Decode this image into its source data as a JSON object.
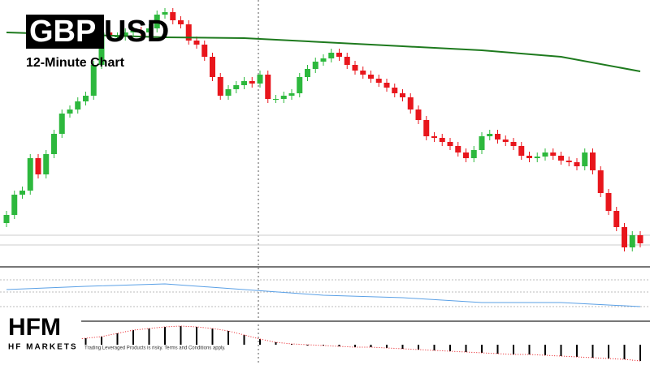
{
  "chart_data": {
    "type": "candlestick",
    "title_boxed": "GBP",
    "title_rest": "USD",
    "subtitle": "12-Minute Chart",
    "logo": "HFM",
    "brand": "HF MARKETS",
    "disclaimer": "Trading Leveraged Products is risky. Terms and Conditions apply.",
    "up_color": "#2db83d",
    "down_color": "#e8161c",
    "ylim": [
      0,
      330
    ],
    "open": [
      55,
      65,
      90,
      95,
      135,
      115,
      140,
      165,
      190,
      195,
      205,
      212,
      250,
      290,
      285,
      285,
      290,
      292,
      290,
      295,
      312,
      315,
      305,
      300,
      280,
      275,
      260,
      235,
      212,
      220,
      225,
      230,
      227,
      238,
      208,
      208,
      212,
      215,
      235,
      245,
      254,
      258,
      265,
      260,
      250,
      243,
      238,
      233,
      228,
      222,
      215,
      210,
      195,
      182,
      162,
      160,
      155,
      150,
      142,
      135,
      145,
      162,
      165,
      158,
      155,
      150,
      138,
      135,
      137,
      142,
      138,
      132,
      130,
      125,
      142,
      120,
      92,
      70,
      50,
      25,
      40
    ],
    "high": [
      70,
      95,
      100,
      140,
      140,
      145,
      170,
      195,
      200,
      210,
      217,
      255,
      295,
      295,
      290,
      295,
      297,
      297,
      300,
      317,
      320,
      320,
      310,
      305,
      285,
      280,
      265,
      240,
      225,
      230,
      235,
      235,
      243,
      243,
      213,
      217,
      220,
      240,
      250,
      259,
      263,
      270,
      270,
      265,
      255,
      248,
      243,
      238,
      233,
      227,
      220,
      215,
      200,
      187,
      167,
      165,
      160,
      155,
      147,
      150,
      167,
      170,
      170,
      163,
      160,
      155,
      143,
      142,
      147,
      147,
      143,
      137,
      135,
      147,
      147,
      125,
      97,
      75,
      55,
      45,
      45
    ],
    "low": [
      50,
      60,
      85,
      90,
      110,
      110,
      135,
      160,
      185,
      190,
      200,
      207,
      245,
      280,
      280,
      280,
      285,
      285,
      285,
      290,
      307,
      300,
      295,
      275,
      270,
      255,
      230,
      207,
      207,
      215,
      220,
      222,
      222,
      203,
      203,
      203,
      207,
      210,
      230,
      240,
      249,
      253,
      255,
      245,
      238,
      233,
      228,
      223,
      217,
      210,
      205,
      190,
      177,
      157,
      155,
      150,
      145,
      137,
      130,
      130,
      140,
      157,
      153,
      150,
      145,
      133,
      130,
      130,
      132,
      133,
      127,
      125,
      120,
      120,
      115,
      87,
      65,
      45,
      20,
      20,
      25
    ],
    "close": [
      65,
      90,
      95,
      135,
      115,
      140,
      165,
      190,
      195,
      205,
      212,
      250,
      290,
      285,
      285,
      290,
      292,
      290,
      295,
      312,
      315,
      305,
      300,
      280,
      275,
      260,
      235,
      212,
      220,
      225,
      230,
      227,
      238,
      208,
      208,
      212,
      215,
      235,
      245,
      254,
      258,
      265,
      260,
      250,
      243,
      238,
      233,
      228,
      222,
      215,
      210,
      195,
      182,
      162,
      160,
      155,
      150,
      142,
      135,
      145,
      162,
      165,
      158,
      155,
      150,
      138,
      135,
      137,
      142,
      138,
      132,
      130,
      125,
      142,
      120,
      92,
      70,
      50,
      25,
      40,
      30
    ],
    "moving_average": {
      "color": "#1e7a1e",
      "x": [
        0,
        10,
        20,
        30,
        40,
        50,
        60,
        70,
        80
      ],
      "values": [
        290,
        287,
        284,
        283,
        278,
        273,
        268,
        260,
        242
      ]
    },
    "oscillator": {
      "color": "#5aa0e6",
      "ylim": [
        0,
        65
      ],
      "x": [
        0,
        10,
        20,
        30,
        40,
        50,
        60,
        70,
        80
      ],
      "values": [
        38,
        42,
        45,
        38,
        31,
        28,
        22,
        22,
        17
      ]
    },
    "histogram": {
      "color": "#000000",
      "ylim": [
        -25,
        29
      ],
      "signal_color": "#e8161c",
      "x": [
        0,
        2,
        4,
        6,
        8,
        10,
        12,
        14,
        16,
        18,
        20,
        22,
        24,
        26,
        28,
        30,
        32,
        34,
        36,
        38,
        40,
        42,
        44,
        46,
        48,
        50,
        52,
        54,
        56,
        58,
        60,
        62,
        64,
        66,
        68,
        70,
        72,
        74,
        76,
        78,
        80
      ],
      "values": [
        2,
        3,
        4,
        5,
        6,
        8,
        10,
        14,
        18,
        20,
        22,
        23,
        22,
        20,
        17,
        12,
        7,
        3,
        1,
        0,
        -1,
        -2,
        -3,
        -3,
        -4,
        -5,
        -6,
        -7,
        -8,
        -9,
        -10,
        -11,
        -12,
        -12,
        -13,
        -14,
        -15,
        -16,
        -17,
        -18,
        -20
      ]
    }
  }
}
